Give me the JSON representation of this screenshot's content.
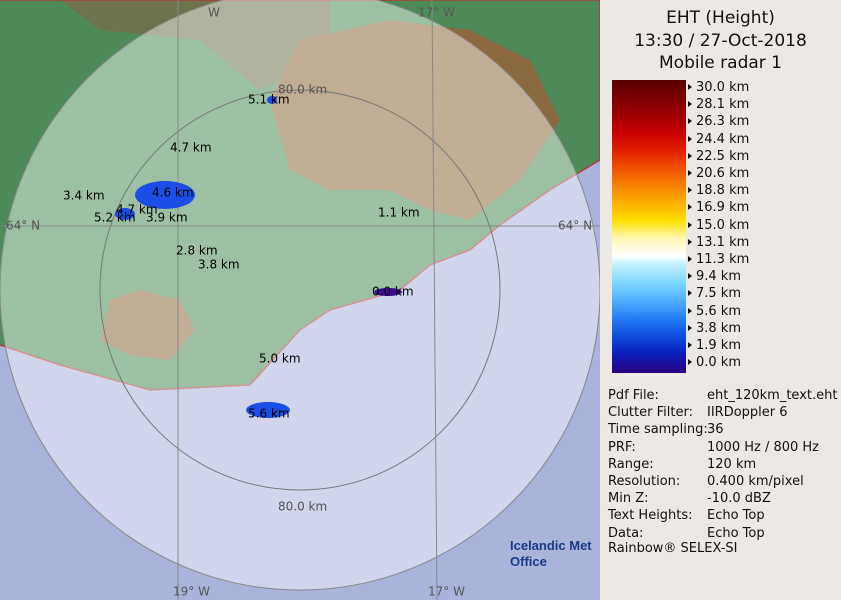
{
  "header": {
    "title": "EHT (Height)",
    "time": "13:30 / 27-Oct-2018",
    "radar": "Mobile radar 1"
  },
  "legend": {
    "labels": [
      "30.0 km",
      "28.1 km",
      "26.3 km",
      "24.4 km",
      "22.5 km",
      "20.6 km",
      "18.8 km",
      "16.9 km",
      "15.0 km",
      "13.1 km",
      "11.3 km",
      "9.4 km",
      "7.5 km",
      "5.6 km",
      "3.8 km",
      "1.9 km",
      "0.0 km"
    ]
  },
  "info": {
    "rows": [
      [
        "Pdf File:",
        "eht_120km_text.eht"
      ],
      [
        "Clutter Filter:",
        "IIRDoppler 6"
      ],
      [
        "Time sampling:",
        "36"
      ],
      [
        "PRF:",
        "1000 Hz / 800 Hz"
      ],
      [
        "Range:",
        "120 km"
      ],
      [
        "Resolution:",
        "0.400 km/pixel"
      ],
      [
        "Min Z:",
        "-10.0 dBZ"
      ],
      [
        "Text Heights:",
        "Echo Top"
      ],
      [
        "Data:",
        "Echo Top"
      ]
    ],
    "footer": "Rainbow® SELEX-SI"
  },
  "logo": {
    "line1": "Icelandic Met",
    "line2": "Office"
  },
  "map": {
    "grid_labels": [
      "W",
      "17° W",
      "64° N",
      "64° N",
      "19° W",
      "17° W"
    ],
    "ring_labels": [
      "80.0 km",
      "80.0 km"
    ],
    "echo_labels": [
      "5.1 km",
      "4.7 km",
      "3.4 km",
      "4.6 km",
      "4.7 km",
      "5.2 km",
      "3.9 km",
      "1.1 km",
      "2.8 km",
      "3.8 km",
      "0.0 km",
      "5.0 km",
      "5.6 km"
    ]
  }
}
